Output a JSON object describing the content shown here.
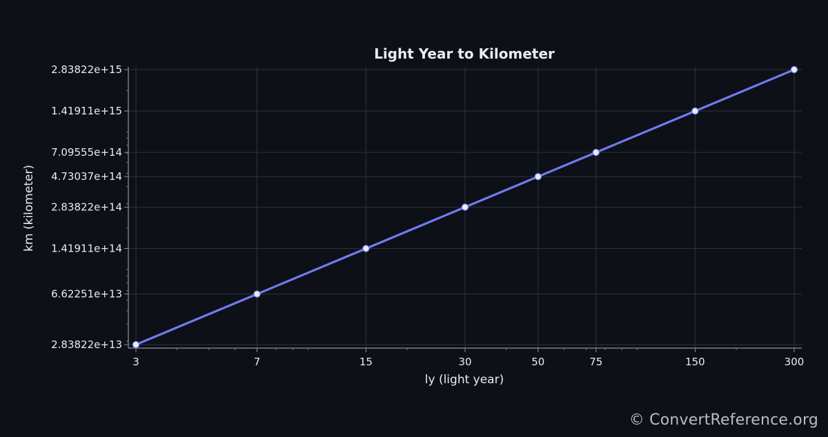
{
  "chart_data": {
    "type": "line",
    "title": "Light Year to Kilometer",
    "xlabel": "ly (light year)",
    "ylabel": "km (kilometer)",
    "x_scale": "log",
    "y_scale": "log",
    "x_ticks": [
      "3",
      "7",
      "15",
      "30",
      "50",
      "75",
      "150",
      "300"
    ],
    "y_ticks": [
      "2.83822e+13",
      "6.62251e+13",
      "1.41911e+14",
      "2.83822e+14",
      "4.73037e+14",
      "7.09555e+14",
      "1.41911e+15",
      "2.83822e+15"
    ],
    "grid": true,
    "series": [
      {
        "x": [
          3,
          7,
          15,
          30,
          50,
          75,
          150,
          300
        ],
        "y": [
          28382200000000,
          66225100000000,
          141911000000000,
          283822000000000,
          473037000000000,
          709555000000000,
          1419110000000000,
          2838220000000000
        ]
      }
    ],
    "line_color": "#6f7cf0",
    "point_color": "#e6edf3"
  },
  "watermark": "© ConvertReference.org"
}
